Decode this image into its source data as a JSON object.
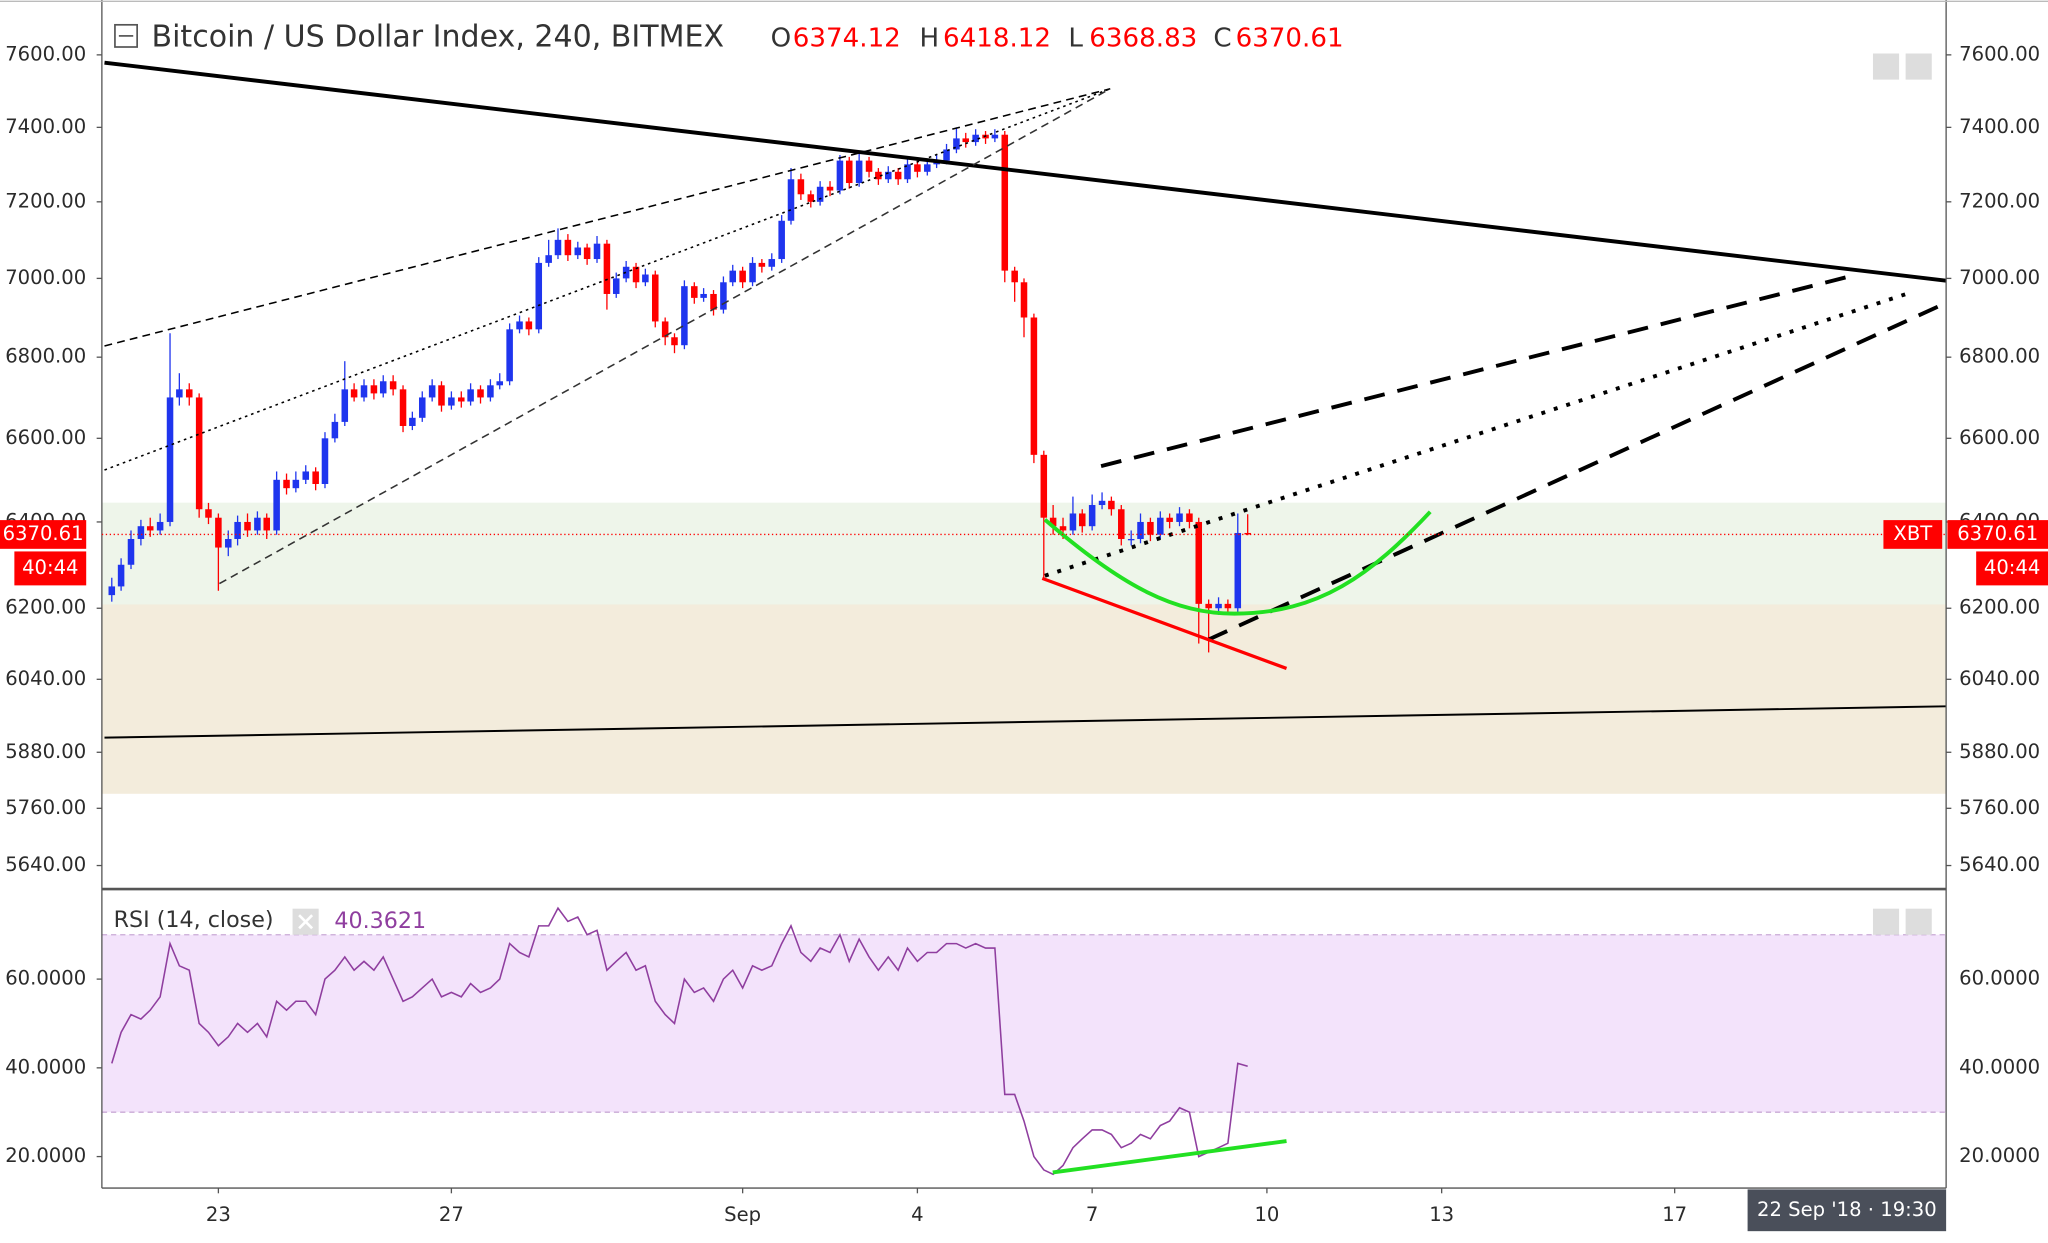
{
  "chart_data": [
    {
      "type": "candlestick",
      "title": "Bitcoin / US Dollar Index, 240, BITMEX",
      "ohlc_labels": [
        "O",
        "H",
        "L",
        "C"
      ],
      "x": [
        21.17,
        21.33,
        21.5,
        21.67,
        21.83,
        22,
        22.17,
        22.33,
        22.5,
        22.67,
        22.83,
        23,
        23.17,
        23.33,
        23.5,
        23.67,
        23.83,
        24,
        24.17,
        24.33,
        24.5,
        24.67,
        24.83,
        25,
        25.17,
        25.33,
        25.5,
        25.67,
        25.83,
        26,
        26.17,
        26.33,
        26.5,
        26.67,
        26.83,
        27,
        27.17,
        27.33,
        27.5,
        27.67,
        27.83,
        28,
        28.17,
        28.33,
        28.5,
        28.67,
        28.83,
        29,
        29.17,
        29.33,
        29.5,
        29.67,
        29.83,
        30,
        30.17,
        30.33,
        30.5,
        30.67,
        30.83,
        31,
        31.17,
        31.33,
        31.5,
        31.67,
        31.83,
        32,
        32.17,
        32.33,
        32.5,
        32.67,
        32.83,
        33,
        33.17,
        33.33,
        33.5,
        33.67,
        33.83,
        34,
        34.17,
        34.33,
        34.5,
        34.67,
        34.83,
        35,
        35.17,
        35.33,
        35.5,
        35.67,
        35.83,
        36,
        36.17,
        36.33,
        36.5,
        36.67,
        36.83,
        37,
        37.17,
        37.33,
        37.5,
        37.67,
        37.83,
        38,
        38.17,
        38.33,
        38.5,
        38.67,
        38.83,
        39,
        39.17,
        39.33,
        39.5,
        39.67,
        39.83,
        40,
        40.17,
        40.33,
        40.5,
        40.67
      ],
      "open": [
        6230,
        6250,
        6300,
        6360,
        6390,
        6380,
        6400,
        6700,
        6720,
        6700,
        6430,
        6410,
        6340,
        6360,
        6400,
        6380,
        6410,
        6380,
        6500,
        6480,
        6500,
        6520,
        6490,
        6600,
        6640,
        6720,
        6700,
        6730,
        6710,
        6740,
        6720,
        6630,
        6650,
        6700,
        6730,
        6680,
        6700,
        6690,
        6720,
        6700,
        6730,
        6740,
        6870,
        6890,
        6870,
        7040,
        7060,
        7100,
        7060,
        7080,
        7050,
        7090,
        6960,
        7000,
        7030,
        6990,
        7010,
        6890,
        6850,
        6830,
        6980,
        6950,
        6960,
        6920,
        6990,
        7020,
        6990,
        7040,
        7030,
        7050,
        7150,
        7260,
        7220,
        7200,
        7240,
        7230,
        7310,
        7250,
        7310,
        7280,
        7260,
        7280,
        7260,
        7300,
        7280,
        7300,
        7310,
        7340,
        7370,
        7360,
        7380,
        7370,
        7380,
        7020,
        6990,
        6900,
        6560,
        6410,
        6390,
        6380,
        6420,
        6390,
        6440,
        6450,
        6430,
        6360,
        6360,
        6400,
        6370,
        6410,
        6400,
        6420,
        6400,
        6210,
        6200,
        6210,
        6200,
        6374.12
      ],
      "high": [
        6270,
        6315,
        6380,
        6405,
        6410,
        6420,
        6860,
        6760,
        6735,
        6710,
        6445,
        6420,
        6380,
        6415,
        6420,
        6425,
        6420,
        6520,
        6515,
        6520,
        6535,
        6530,
        6615,
        6660,
        6790,
        6735,
        6745,
        6745,
        6755,
        6755,
        6730,
        6665,
        6715,
        6745,
        6740,
        6715,
        6715,
        6735,
        6730,
        6745,
        6760,
        6885,
        6905,
        6900,
        7055,
        7100,
        7130,
        7115,
        7095,
        7090,
        7110,
        7100,
        7015,
        7045,
        7040,
        7025,
        7020,
        6900,
        6860,
        6995,
        6990,
        6975,
        6970,
        7005,
        7035,
        7030,
        7055,
        7050,
        7065,
        7165,
        7290,
        7275,
        7230,
        7255,
        7255,
        7325,
        7320,
        7330,
        7320,
        7290,
        7295,
        7290,
        7315,
        7310,
        7315,
        7325,
        7355,
        7400,
        7385,
        7395,
        7390,
        7395,
        7390,
        7030,
        7000,
        6910,
        6570,
        6440,
        6410,
        6460,
        6430,
        6465,
        6470,
        6460,
        6440,
        6380,
        6420,
        6410,
        6425,
        6420,
        6435,
        6430,
        6410,
        6220,
        6225,
        6220,
        6420,
        6418.12
      ],
      "low": [
        6215,
        6240,
        6290,
        6345,
        6365,
        6370,
        6390,
        6680,
        6680,
        6410,
        6395,
        6240,
        6320,
        6345,
        6365,
        6370,
        6360,
        6370,
        6465,
        6470,
        6490,
        6475,
        6480,
        6590,
        6630,
        6690,
        6690,
        6695,
        6700,
        6705,
        6615,
        6620,
        6640,
        6690,
        6665,
        6670,
        6675,
        6680,
        6685,
        6690,
        6720,
        6730,
        6860,
        6855,
        6860,
        7030,
        7050,
        7045,
        7050,
        7035,
        7040,
        6920,
        6950,
        6990,
        6975,
        6980,
        6875,
        6830,
        6810,
        6820,
        6935,
        6940,
        6905,
        6910,
        6980,
        6975,
        6980,
        7015,
        7020,
        7040,
        7140,
        7205,
        7185,
        7190,
        7215,
        7220,
        7235,
        7240,
        7265,
        7245,
        7250,
        7245,
        7250,
        7265,
        7270,
        7290,
        7300,
        7330,
        7345,
        7350,
        7355,
        7360,
        6990,
        6940,
        6850,
        6540,
        6270,
        6370,
        6360,
        6370,
        6375,
        6380,
        6430,
        6415,
        6345,
        6345,
        6350,
        6355,
        6360,
        6385,
        6390,
        6385,
        6120,
        6100,
        6185,
        6185,
        6190,
        6368.83
      ],
      "close": [
        6250,
        6300,
        6360,
        6390,
        6380,
        6400,
        6700,
        6720,
        6700,
        6430,
        6410,
        6340,
        6360,
        6400,
        6380,
        6410,
        6380,
        6500,
        6480,
        6500,
        6520,
        6490,
        6600,
        6640,
        6720,
        6700,
        6730,
        6710,
        6740,
        6720,
        6630,
        6650,
        6700,
        6730,
        6680,
        6700,
        6690,
        6720,
        6700,
        6730,
        6740,
        6870,
        6890,
        6870,
        7040,
        7060,
        7100,
        7060,
        7080,
        7050,
        7090,
        6960,
        7000,
        7030,
        6990,
        7010,
        6890,
        6850,
        6830,
        6980,
        6950,
        6960,
        6920,
        6990,
        7020,
        6990,
        7040,
        7030,
        7050,
        7150,
        7260,
        7220,
        7200,
        7240,
        7230,
        7310,
        7250,
        7310,
        7280,
        7260,
        7280,
        7260,
        7300,
        7280,
        7300,
        7310,
        7340,
        7370,
        7360,
        7380,
        7370,
        7380,
        7020,
        6990,
        6900,
        6560,
        6410,
        6390,
        6380,
        6420,
        6390,
        6440,
        6450,
        6430,
        6360,
        6360,
        6400,
        6370,
        6410,
        6400,
        6420,
        6400,
        6210,
        6200,
        6210,
        6200,
        6374.12,
        6370.61
      ],
      "up_color": "#1f35ee",
      "down_color": "#ff0000",
      "xlim": [
        21.0,
        52.66
      ],
      "ylim": [
        5594,
        7755
      ],
      "log_scale": true,
      "grid": false,
      "xticks": [
        23,
        27,
        {
          "value": 32,
          "label": "Sep"
        },
        {
          "value": 35,
          "label": "4"
        },
        {
          "value": 38,
          "label": "7"
        },
        {
          "value": 41,
          "label": "10"
        },
        {
          "value": 44,
          "label": "13"
        },
        {
          "value": 48,
          "label": "17"
        }
      ],
      "yticks": [
        {
          "value": 7600,
          "label": "7600.00"
        },
        {
          "value": 7400,
          "label": "7400.00"
        },
        {
          "value": 7200,
          "label": "7200.00"
        },
        {
          "value": 7000,
          "label": "7000.00"
        },
        {
          "value": 6800,
          "label": "6800.00"
        },
        {
          "value": 6600,
          "label": "6600.00"
        },
        {
          "value": 6400,
          "label": "6400.00"
        },
        {
          "value": 6200,
          "label": "6200.00"
        },
        {
          "value": 6040,
          "label": "6040.00"
        },
        {
          "value": 5880,
          "label": "5880.00"
        },
        {
          "value": 5760,
          "label": "5760.00"
        },
        {
          "value": 5640,
          "label": "5640.00"
        }
      ],
      "countdown": "40:44",
      "symbol_tag": "XBT",
      "crosshair_date": "22 Sep '18 · 19:30"
    },
    {
      "type": "line",
      "title": "RSI (14, close)",
      "color": "#8f3e9f",
      "values": [
        41,
        48,
        52,
        51,
        53,
        56,
        68,
        63,
        62,
        50,
        48,
        45,
        47,
        50,
        48,
        50,
        47,
        55,
        53,
        55,
        55,
        52,
        60,
        62,
        65,
        62,
        64,
        62,
        65,
        60,
        55,
        56,
        58,
        60,
        56,
        57,
        56,
        59,
        57,
        58,
        60,
        68,
        66,
        65,
        72,
        72,
        76,
        73,
        74,
        70,
        71,
        62,
        64,
        66,
        62,
        63,
        55,
        52,
        50,
        60,
        57,
        58,
        55,
        60,
        62,
        58,
        63,
        62,
        63,
        68,
        72,
        66,
        64,
        67,
        66,
        70,
        64,
        69,
        65,
        62,
        65,
        62,
        67,
        64,
        66,
        66,
        68,
        68,
        67,
        68,
        67,
        67,
        34,
        34,
        28,
        20,
        17,
        16,
        18,
        22,
        24,
        26,
        26,
        25,
        22,
        23,
        25,
        24,
        27,
        28,
        31,
        30,
        20,
        21,
        22,
        23,
        41,
        40.3621
      ],
      "ylim": [
        12.9,
        79.4
      ],
      "band": [
        30,
        70
      ],
      "band_color": "#f3e3fb",
      "yticks": [
        {
          "value": 60,
          "label": "60.0000"
        },
        {
          "value": 40,
          "label": "40.0000"
        },
        {
          "value": 20,
          "label": "20.0000"
        }
      ]
    }
  ]
}
